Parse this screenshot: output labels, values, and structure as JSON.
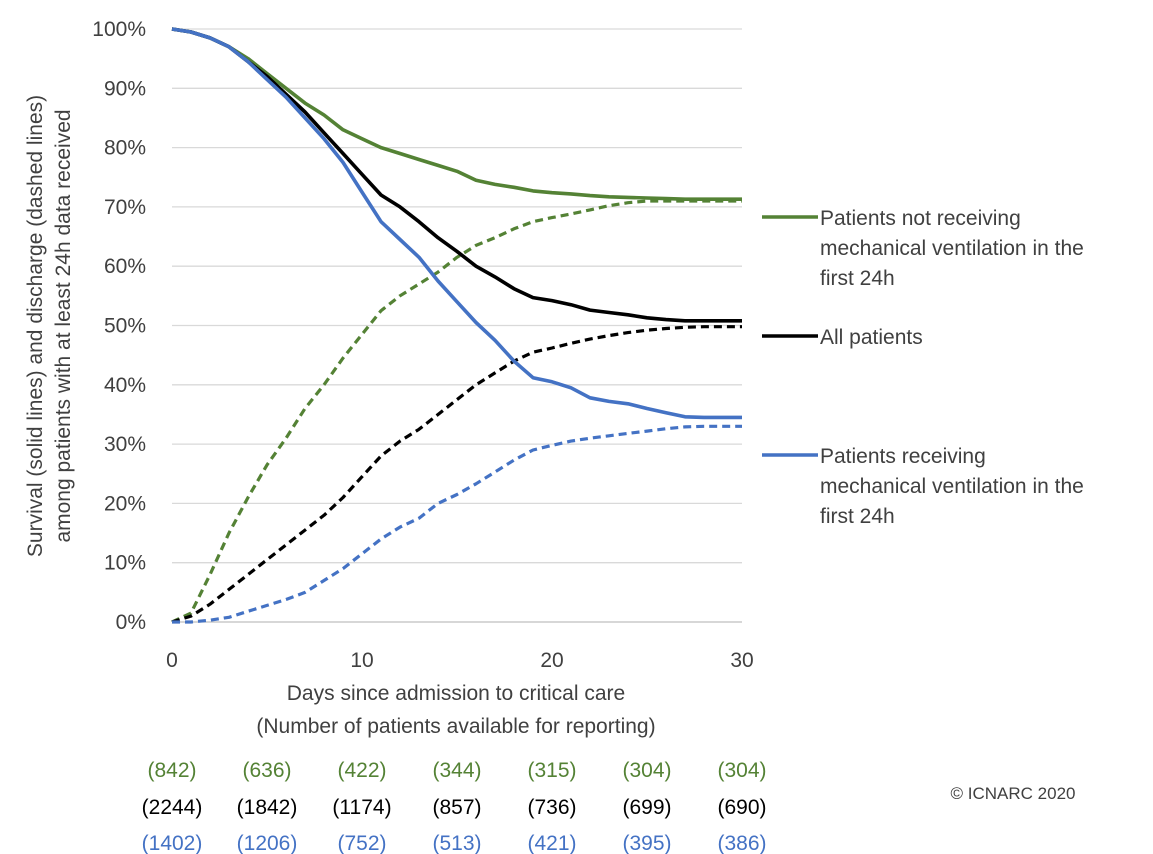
{
  "chart_data": {
    "type": "line",
    "xlabel": "Days since admission to critical care",
    "xlabel_sub": "(Number of patients available for reporting)",
    "ylabel_line1": "Survival (solid lines) and  discharge (dashed lines)",
    "ylabel_line2": "among patients with at least 24h data received",
    "xlim": [
      0,
      30
    ],
    "ylim": [
      0,
      100
    ],
    "x_ticks": [
      0,
      10,
      20,
      30
    ],
    "y_ticks": [
      0,
      10,
      20,
      30,
      40,
      50,
      60,
      70,
      80,
      90,
      100
    ],
    "y_tick_labels": [
      "0%",
      "10%",
      "20%",
      "30%",
      "40%",
      "50%",
      "60%",
      "70%",
      "80%",
      "90%",
      "100%"
    ],
    "grid": "horizontal",
    "legend_position": "right",
    "x": [
      0,
      1,
      2,
      3,
      4,
      5,
      6,
      7,
      8,
      9,
      10,
      11,
      12,
      13,
      14,
      15,
      16,
      17,
      18,
      19,
      20,
      21,
      22,
      23,
      24,
      25,
      26,
      27,
      28,
      29,
      30
    ],
    "series": [
      {
        "name": "Patients not receiving mechanical ventilation in the first 24h",
        "color": "#548235",
        "survival": [
          100,
          99.5,
          98.5,
          97,
          95,
          92.5,
          90,
          87.5,
          85.5,
          83,
          81.5,
          80,
          79,
          78,
          77,
          76,
          74.5,
          73.8,
          73.3,
          72.7,
          72.4,
          72.2,
          71.9,
          71.7,
          71.6,
          71.5,
          71.4,
          71.3,
          71.3,
          71.3,
          71.3
        ],
        "discharge": [
          0,
          1.5,
          8,
          15,
          21,
          26.5,
          31,
          36,
          40,
          44.5,
          48.5,
          52.5,
          55,
          57,
          59,
          61.5,
          63.5,
          64.8,
          66.3,
          67.5,
          68.2,
          68.8,
          69.5,
          70.2,
          70.7,
          71,
          71,
          71,
          71,
          71,
          71
        ]
      },
      {
        "name": "All patients",
        "color": "#000000",
        "survival": [
          100,
          99.5,
          98.5,
          97,
          94.5,
          92,
          89,
          86,
          82.5,
          79,
          75.5,
          72,
          70,
          67.5,
          64.8,
          62.5,
          60,
          58.2,
          56.2,
          54.7,
          54.2,
          53.5,
          52.6,
          52.2,
          51.8,
          51.3,
          51,
          50.8,
          50.8,
          50.8,
          50.8
        ],
        "discharge": [
          0,
          1,
          3,
          5.5,
          8,
          10.5,
          13,
          15.5,
          18,
          21,
          24.5,
          28,
          30.5,
          32.5,
          35,
          37.5,
          40,
          42,
          44,
          45.5,
          46.2,
          47,
          47.7,
          48.3,
          48.8,
          49.2,
          49.5,
          49.7,
          49.8,
          49.8,
          49.8
        ]
      },
      {
        "name": "Patients receiving mechanical ventilation in the first 24h",
        "color": "#4472C4",
        "survival": [
          100,
          99.5,
          98.5,
          97,
          94.5,
          91.5,
          88.5,
          85,
          81.5,
          77.5,
          72.5,
          67.5,
          64.5,
          61.5,
          57.5,
          54,
          50.5,
          47.5,
          44,
          41.2,
          40.5,
          39.5,
          37.8,
          37.2,
          36.8,
          36,
          35.3,
          34.6,
          34.5,
          34.5,
          34.5
        ],
        "discharge": [
          0,
          0,
          0.3,
          0.8,
          1.8,
          2.8,
          3.8,
          5,
          7,
          9,
          11.5,
          14,
          16,
          17.5,
          20,
          21.5,
          23.3,
          25.3,
          27.3,
          29,
          29.8,
          30.5,
          31,
          31.4,
          31.8,
          32.2,
          32.6,
          32.9,
          33,
          33,
          33
        ]
      }
    ],
    "patient_counts": {
      "days": [
        0,
        5,
        10,
        15,
        20,
        25,
        30
      ],
      "rows": [
        {
          "color": "#548235",
          "values": [
            "(842)",
            "(636)",
            "(422)",
            "(344)",
            "(315)",
            "(304)",
            "(304)"
          ]
        },
        {
          "color": "#000000",
          "values": [
            "(2244)",
            "(1842)",
            "(1174)",
            "(857)",
            "(736)",
            "(699)",
            "(690)"
          ]
        },
        {
          "color": "#4472C4",
          "values": [
            "(1402)",
            "(1206)",
            "(752)",
            "(513)",
            "(421)",
            "(395)",
            "(386)"
          ]
        }
      ]
    },
    "legend": [
      {
        "series": 0,
        "lines": [
          "Patients not receiving",
          "mechanical ventilation in the",
          "first 24h"
        ]
      },
      {
        "series": 1,
        "lines": [
          "All patients"
        ]
      },
      {
        "series": 2,
        "lines": [
          "Patients receiving",
          "mechanical ventilation in the",
          "first 24h"
        ]
      }
    ]
  },
  "copyright": "© ICNARC 2020"
}
